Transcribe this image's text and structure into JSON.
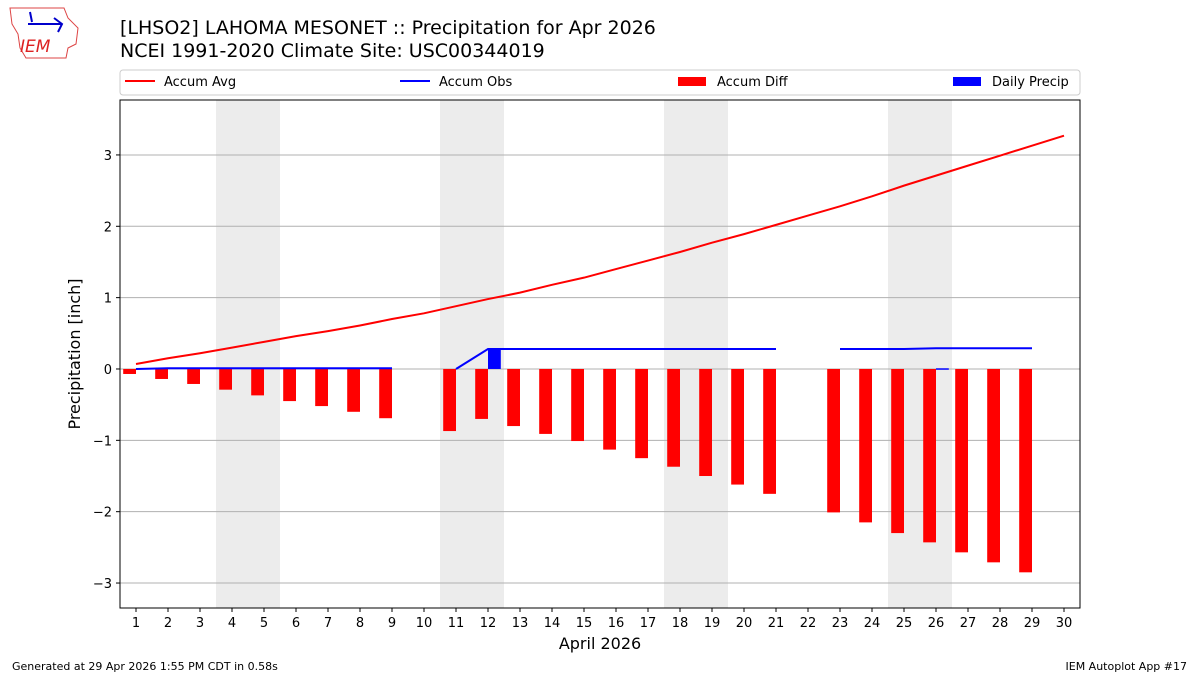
{
  "title": "[LHSO2] LAHOMA MESONET :: Precipitation for Apr 2026",
  "subtitle": "NCEI 1991-2020 Climate Site: USC00344019",
  "logo_text": "IEM",
  "footer_left": "Generated at 29 Apr 2026 1:55 PM CDT in 0.58s",
  "footer_right": "IEM Autoplot App #17",
  "chart_data": {
    "type": "bar+line",
    "xlabel": "April 2026",
    "ylabel": "Precipitation [inch]",
    "xlim": [
      0.5,
      30.5
    ],
    "ylim": [
      -3.35,
      3.77
    ],
    "grid": "horizontal",
    "legend": "top",
    "x": [
      1,
      2,
      3,
      4,
      5,
      6,
      7,
      8,
      9,
      10,
      11,
      12,
      13,
      14,
      15,
      16,
      17,
      18,
      19,
      20,
      21,
      22,
      23,
      24,
      25,
      26,
      27,
      28,
      29,
      30
    ],
    "xticks": [
      "1",
      "2",
      "3",
      "4",
      "5",
      "6",
      "7",
      "8",
      "9",
      "10",
      "11",
      "12",
      "13",
      "14",
      "15",
      "16",
      "17",
      "18",
      "19",
      "20",
      "21",
      "22",
      "23",
      "24",
      "25",
      "26",
      "27",
      "28",
      "29",
      "30"
    ],
    "yticks": [
      -3,
      -2,
      -1,
      0,
      1,
      2,
      3
    ],
    "weekend_shading": [
      [
        3.5,
        5.5
      ],
      [
        10.5,
        12.5
      ],
      [
        17.5,
        19.5
      ],
      [
        24.5,
        26.5
      ]
    ],
    "series": [
      {
        "name": "Accum Avg",
        "kind": "line",
        "color": "#ff0000",
        "values": [
          0.07,
          0.15,
          0.22,
          0.3,
          0.38,
          0.46,
          0.53,
          0.61,
          0.7,
          0.78,
          0.88,
          0.98,
          1.07,
          1.18,
          1.28,
          1.4,
          1.52,
          1.64,
          1.77,
          1.89,
          2.02,
          2.15,
          2.28,
          2.42,
          2.57,
          2.71,
          2.85,
          2.99,
          3.13,
          3.27
        ]
      },
      {
        "name": "Accum Obs",
        "kind": "line",
        "color": "#0000ff",
        "values": [
          0.0,
          0.01,
          0.01,
          0.01,
          0.01,
          0.01,
          0.01,
          0.01,
          0.01,
          null,
          0.0,
          0.28,
          0.28,
          0.28,
          0.28,
          0.28,
          0.28,
          0.28,
          0.28,
          0.28,
          0.28,
          null,
          0.28,
          0.28,
          0.28,
          0.29,
          0.29,
          0.29,
          0.29,
          null
        ]
      },
      {
        "name": "Accum Diff",
        "kind": "bar",
        "color": "#ff0000",
        "values": [
          -0.07,
          -0.14,
          -0.21,
          -0.29,
          -0.37,
          -0.45,
          -0.52,
          -0.6,
          -0.69,
          null,
          -0.87,
          -0.7,
          -0.8,
          -0.91,
          -1.01,
          -1.13,
          -1.25,
          -1.37,
          -1.5,
          -1.62,
          -1.75,
          null,
          -2.01,
          -2.15,
          -2.3,
          -2.43,
          -2.57,
          -2.71,
          -2.85,
          null
        ]
      },
      {
        "name": "Daily Precip",
        "kind": "bar",
        "color": "#0000ff",
        "values": [
          0,
          0,
          0,
          0,
          0,
          0,
          0,
          0,
          0,
          null,
          0,
          0.28,
          0,
          0,
          0,
          0,
          0,
          0,
          0,
          0,
          0,
          null,
          0,
          0,
          0,
          0.01,
          0,
          0,
          0,
          null
        ]
      }
    ]
  }
}
